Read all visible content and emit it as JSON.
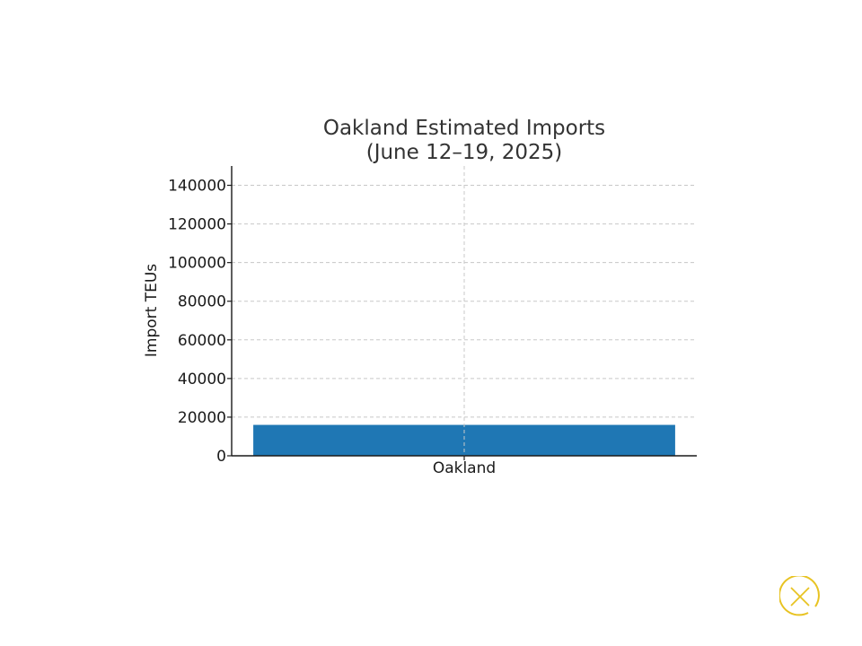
{
  "chart_data": {
    "type": "bar",
    "title": "Oakland Estimated Imports\n(June 12–19, 2025)",
    "title_lines": [
      "Oakland Estimated Imports",
      "(June 12–19, 2025)"
    ],
    "xlabel": "",
    "ylabel": "Import TEUs",
    "categories": [
      "Oakland"
    ],
    "values": [
      16000
    ],
    "ylim": [
      0,
      150000
    ],
    "yticks": [
      0,
      20000,
      40000,
      60000,
      80000,
      100000,
      120000,
      140000
    ],
    "grid": true,
    "legend": "none",
    "bar_color": "#1f77b4"
  },
  "controls": {
    "close_icon": "close-circle-icon",
    "close_color": "#e8c322"
  }
}
